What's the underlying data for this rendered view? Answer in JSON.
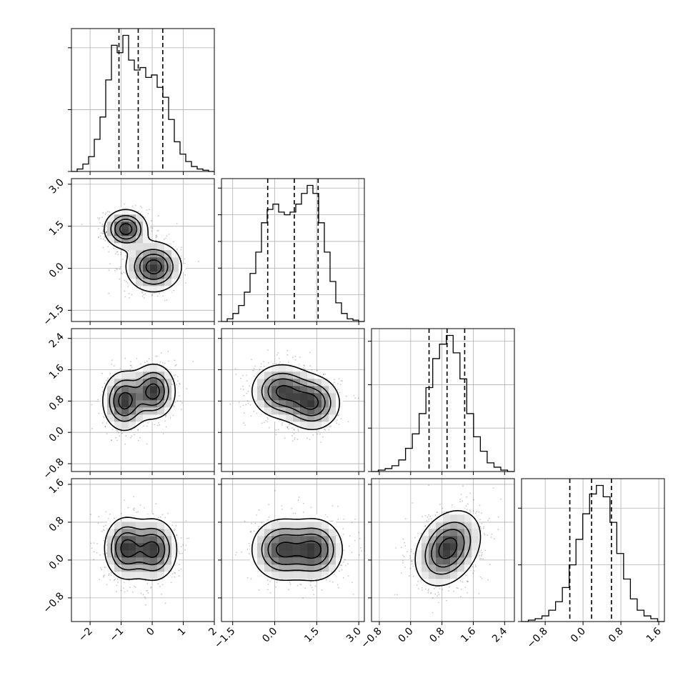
{
  "chart_data": {
    "type": "corner",
    "title": "",
    "grid": true,
    "parameters": [
      {
        "range": [
          -2.6,
          2.0
        ],
        "ticks": [
          -2,
          -1,
          0,
          1,
          2
        ],
        "tick_labels": [
          "−2",
          "−1",
          "0",
          "1",
          "2"
        ],
        "quantiles": [
          -1.07,
          -0.45,
          0.34
        ],
        "hist_counts": [
          0,
          1,
          3,
          6,
          13,
          22,
          37,
          51,
          48,
          55,
          45,
          41,
          42,
          38,
          39,
          34,
          30,
          21,
          12,
          7,
          4,
          2,
          1,
          0.5,
          0
        ],
        "hist_ticks": [
          0,
          25,
          50
        ]
      },
      {
        "range": [
          -1.9,
          3.2
        ],
        "ticks": [
          -1.5,
          0.0,
          1.5,
          3.0
        ],
        "tick_labels": [
          "−1.5",
          "0.0",
          "1.5",
          "3.0"
        ],
        "quantiles": [
          -0.25,
          0.7,
          1.55
        ],
        "hist_counts": [
          0,
          1,
          3,
          6,
          11,
          18,
          26,
          37,
          42,
          44,
          41,
          40,
          41,
          44,
          48,
          51,
          48,
          37,
          26,
          15,
          7,
          3,
          1,
          0.5,
          0
        ],
        "hist_ticks": [
          0,
          10,
          20,
          30,
          40,
          50
        ]
      },
      {
        "range": [
          -1.0,
          2.65
        ],
        "ticks": [
          -0.8,
          0.0,
          0.8,
          1.6,
          2.4
        ],
        "tick_labels": [
          "−0.8",
          "0.0",
          "0.8",
          "1.6",
          "2.4"
        ],
        "quantiles": [
          0.47,
          0.93,
          1.38
        ],
        "hist_counts": [
          0,
          0.5,
          1,
          2,
          4,
          8,
          13,
          20,
          29,
          39,
          44,
          47,
          41,
          32,
          20,
          12,
          7,
          3,
          1.5,
          0.5,
          0
        ],
        "hist_ticks": [
          0,
          15,
          30,
          45
        ]
      },
      {
        "range": [
          -1.3,
          1.72
        ],
        "ticks": [
          -0.8,
          0.0,
          0.8,
          1.6
        ],
        "tick_labels": [
          "−0.8",
          "0.0",
          "0.8",
          "1.6"
        ],
        "quantiles": [
          -0.28,
          0.18,
          0.6
        ],
        "hist_counts": [
          0,
          0.5,
          1,
          2,
          4,
          7,
          12,
          20,
          29,
          38,
          45,
          48,
          44,
          35,
          24,
          15,
          8,
          4,
          2,
          1,
          0
        ],
        "hist_ticks": [
          0,
          20,
          40
        ]
      }
    ],
    "pairs": [
      {
        "x": 0,
        "y": 1,
        "modes": [
          {
            "mx": -0.85,
            "my": 1.4,
            "sx": 0.35,
            "sy": 0.35,
            "rho": 0.0,
            "w": 1.0
          },
          {
            "mx": 0.05,
            "my": 0.05,
            "sx": 0.45,
            "sy": 0.45,
            "rho": 0.0,
            "w": 1.0
          }
        ]
      },
      {
        "x": 0,
        "y": 2,
        "modes": [
          {
            "mx": -0.9,
            "my": 0.8,
            "sx": 0.35,
            "sy": 0.38,
            "rho": 0.0,
            "w": 1.0
          },
          {
            "mx": 0.05,
            "my": 1.05,
            "sx": 0.35,
            "sy": 0.35,
            "rho": 0.0,
            "w": 1.0
          }
        ]
      },
      {
        "x": 1,
        "y": 2,
        "modes": [
          {
            "mx": 0.25,
            "my": 1.05,
            "sx": 0.55,
            "sy": 0.35,
            "rho": 0.0,
            "w": 1.0
          },
          {
            "mx": 1.35,
            "my": 0.75,
            "sx": 0.5,
            "sy": 0.35,
            "rho": 0.0,
            "w": 1.0
          }
        ]
      },
      {
        "x": 0,
        "y": 3,
        "modes": [
          {
            "mx": -0.85,
            "my": 0.25,
            "sx": 0.35,
            "sy": 0.33,
            "rho": 0.0,
            "w": 1.0
          },
          {
            "mx": 0.05,
            "my": 0.22,
            "sx": 0.38,
            "sy": 0.33,
            "rho": 0.0,
            "w": 1.0
          }
        ]
      },
      {
        "x": 1,
        "y": 3,
        "modes": [
          {
            "mx": 0.25,
            "my": 0.22,
            "sx": 0.55,
            "sy": 0.33,
            "rho": 0.0,
            "w": 1.0
          },
          {
            "mx": 1.45,
            "my": 0.22,
            "sx": 0.5,
            "sy": 0.33,
            "rho": 0.0,
            "w": 1.0
          }
        ]
      },
      {
        "x": 2,
        "y": 3,
        "modes": [
          {
            "mx": 0.95,
            "my": 0.25,
            "sx": 0.42,
            "sy": 0.4,
            "rho": 0.3,
            "w": 1.0
          }
        ]
      }
    ]
  }
}
